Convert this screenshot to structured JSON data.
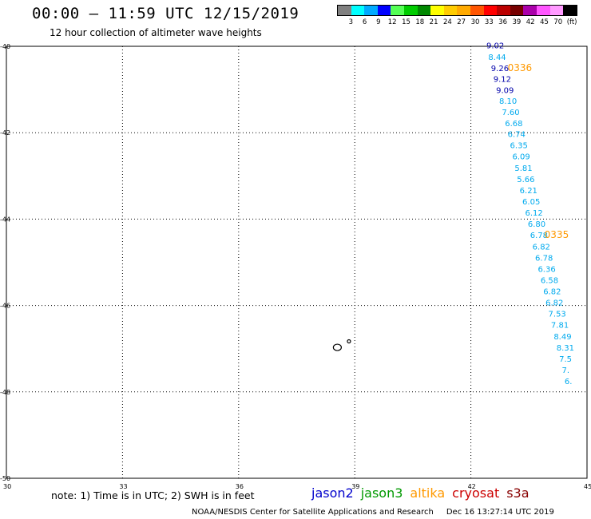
{
  "header": {
    "title": "00:00 – 11:59 UTC 12/15/2019",
    "subtitle": "12 hour collection of altimeter wave heights"
  },
  "legend": {
    "swatch_colors": [
      "#808080",
      "#00ffff",
      "#00aaff",
      "#0000ff",
      "#55ff55",
      "#00cc00",
      "#008800",
      "#ffff00",
      "#ffcc00",
      "#ffaa00",
      "#ff5500",
      "#ff0000",
      "#bb0000",
      "#770000",
      "#aa00aa",
      "#ff55ff",
      "#ff99ff",
      "#000000"
    ],
    "labels": [
      "3",
      "6",
      "9",
      "12",
      "15",
      "18",
      "21",
      "24",
      "27",
      "30",
      "33",
      "36",
      "39",
      "42",
      "45",
      "70",
      "(ft)"
    ]
  },
  "map": {
    "lon_range": [
      30,
      45
    ],
    "lat_range": [
      -50,
      -40
    ],
    "lat_labels": [
      "-40",
      "-42",
      "-44",
      "-46",
      "-48",
      "-50"
    ],
    "lon_labels": [
      "30",
      "33",
      "36",
      "39",
      "42",
      "45"
    ],
    "grid": "dotted"
  },
  "track": {
    "observations": [
      {
        "lon": 42.4,
        "lat": -40.05,
        "swh": "9.02",
        "color": "#0000aa"
      },
      {
        "lon": 42.45,
        "lat": -40.31,
        "swh": "8.44",
        "color": "#00aaee"
      },
      {
        "lon": 42.52,
        "lat": -40.57,
        "swh": "9.26",
        "color": "#0000aa"
      },
      {
        "lon": 42.58,
        "lat": -40.82,
        "swh": "9.12",
        "color": "#0000aa"
      },
      {
        "lon": 42.65,
        "lat": -41.08,
        "swh": "9.09",
        "color": "#0000aa"
      },
      {
        "lon": 42.73,
        "lat": -41.33,
        "swh": "8.10",
        "color": "#00aaee"
      },
      {
        "lon": 42.8,
        "lat": -41.59,
        "swh": "7.60",
        "color": "#00aaee"
      },
      {
        "lon": 42.88,
        "lat": -41.85,
        "swh": "6.68",
        "color": "#00aaee"
      },
      {
        "lon": 42.95,
        "lat": -42.1,
        "swh": "6.74",
        "color": "#00aaee"
      },
      {
        "lon": 43.01,
        "lat": -42.36,
        "swh": "6.35",
        "color": "#00aaee"
      },
      {
        "lon": 43.07,
        "lat": -42.62,
        "swh": "6.09",
        "color": "#00aaee"
      },
      {
        "lon": 43.13,
        "lat": -42.88,
        "swh": "5.81",
        "color": "#00aaee"
      },
      {
        "lon": 43.19,
        "lat": -43.14,
        "swh": "5.66",
        "color": "#00aaee"
      },
      {
        "lon": 43.26,
        "lat": -43.4,
        "swh": "6.21",
        "color": "#00aaee"
      },
      {
        "lon": 43.33,
        "lat": -43.66,
        "swh": "6.05",
        "color": "#00aaee"
      },
      {
        "lon": 43.4,
        "lat": -43.92,
        "swh": "6.12",
        "color": "#00aaee"
      },
      {
        "lon": 43.47,
        "lat": -44.18,
        "swh": "6.80",
        "color": "#00aaee"
      },
      {
        "lon": 43.53,
        "lat": -44.44,
        "swh": "6.78",
        "color": "#00aaee"
      },
      {
        "lon": 43.59,
        "lat": -44.7,
        "swh": "6.82",
        "color": "#00aaee"
      },
      {
        "lon": 43.66,
        "lat": -44.96,
        "swh": "6.78",
        "color": "#00aaee"
      },
      {
        "lon": 43.73,
        "lat": -45.22,
        "swh": "6.36",
        "color": "#00aaee"
      },
      {
        "lon": 43.8,
        "lat": -45.48,
        "swh": "6.58",
        "color": "#00aaee"
      },
      {
        "lon": 43.87,
        "lat": -45.74,
        "swh": "6.82",
        "color": "#00aaee"
      },
      {
        "lon": 43.93,
        "lat": -46.0,
        "swh": "6.82",
        "color": "#00aaee"
      },
      {
        "lon": 44.0,
        "lat": -46.26,
        "swh": "7.53",
        "color": "#00aaee"
      },
      {
        "lon": 44.07,
        "lat": -46.52,
        "swh": "7.81",
        "color": "#00aaee"
      },
      {
        "lon": 44.14,
        "lat": -46.78,
        "swh": "8.49",
        "color": "#00aaee"
      },
      {
        "lon": 44.21,
        "lat": -47.04,
        "swh": "8.31",
        "color": "#00aaee"
      },
      {
        "lon": 44.28,
        "lat": -47.3,
        "swh": "7.5",
        "color": "#00aaee"
      },
      {
        "lon": 44.35,
        "lat": -47.56,
        "swh": "7.",
        "color": "#00aaee"
      },
      {
        "lon": 44.42,
        "lat": -47.82,
        "swh": "6.",
        "color": "#00aaee"
      },
      {
        "lon": 44.49,
        "lat": -48.08,
        "swh": "",
        "color": "#00aaee"
      }
    ],
    "time_labels": [
      {
        "text": "0336",
        "lon": 42.95,
        "lat": -40.57,
        "color": "#ff9900"
      },
      {
        "text": "0335",
        "lon": 43.9,
        "lat": -44.44,
        "color": "#ff9900"
      }
    ]
  },
  "islands": [
    {
      "name": "main",
      "lon": 38.55,
      "lat": -46.97,
      "rx": 5,
      "ry": 4
    },
    {
      "name": "small",
      "lon": 38.85,
      "lat": -46.83,
      "rx": 2,
      "ry": 2
    }
  ],
  "footer": {
    "note": "note: 1) Time is in UTC; 2) SWH is in feet",
    "satellites": [
      {
        "name": "jason2",
        "color": "#0000cc"
      },
      {
        "name": "jason3",
        "color": "#009900"
      },
      {
        "name": "altika",
        "color": "#ff9900"
      },
      {
        "name": "cryosat",
        "color": "#cc0000"
      },
      {
        "name": "s3a",
        "color": "#880000"
      }
    ],
    "credit": "NOAA/NESDIS Center for Satellite Applications and Research",
    "timestamp": "Dec 16 13:27:14 UTC 2019"
  }
}
